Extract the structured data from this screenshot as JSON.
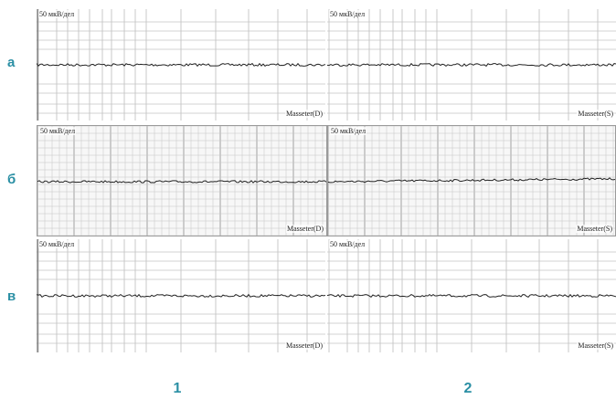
{
  "rows": [
    {
      "letter": "а",
      "style": "sparse",
      "panels": [
        {
          "scale": "50 мкВ/дел",
          "muscle": "Masseter(D)"
        },
        {
          "scale": "50 мкВ/дел",
          "muscle": "Masseter(S)"
        }
      ]
    },
    {
      "letter": "б",
      "style": "dense",
      "panels": [
        {
          "scale": "50 мкВ/дел",
          "muscle": "Masseter(D)"
        },
        {
          "scale": "50 мкВ/дел",
          "muscle": "Masseter(S)"
        }
      ]
    },
    {
      "letter": "в",
      "style": "sparse",
      "panels": [
        {
          "scale": "50 мкВ/дел",
          "muscle": "Masseter(D)"
        },
        {
          "scale": "50 мкВ/дел",
          "muscle": "Masseter(S)"
        }
      ]
    }
  ],
  "columns": [
    "1",
    "2"
  ],
  "colors": {
    "label": "#2a8fa4",
    "grid_light": "#c4c4c4",
    "grid_dark": "#8a8a8a",
    "trace": "#222222"
  }
}
